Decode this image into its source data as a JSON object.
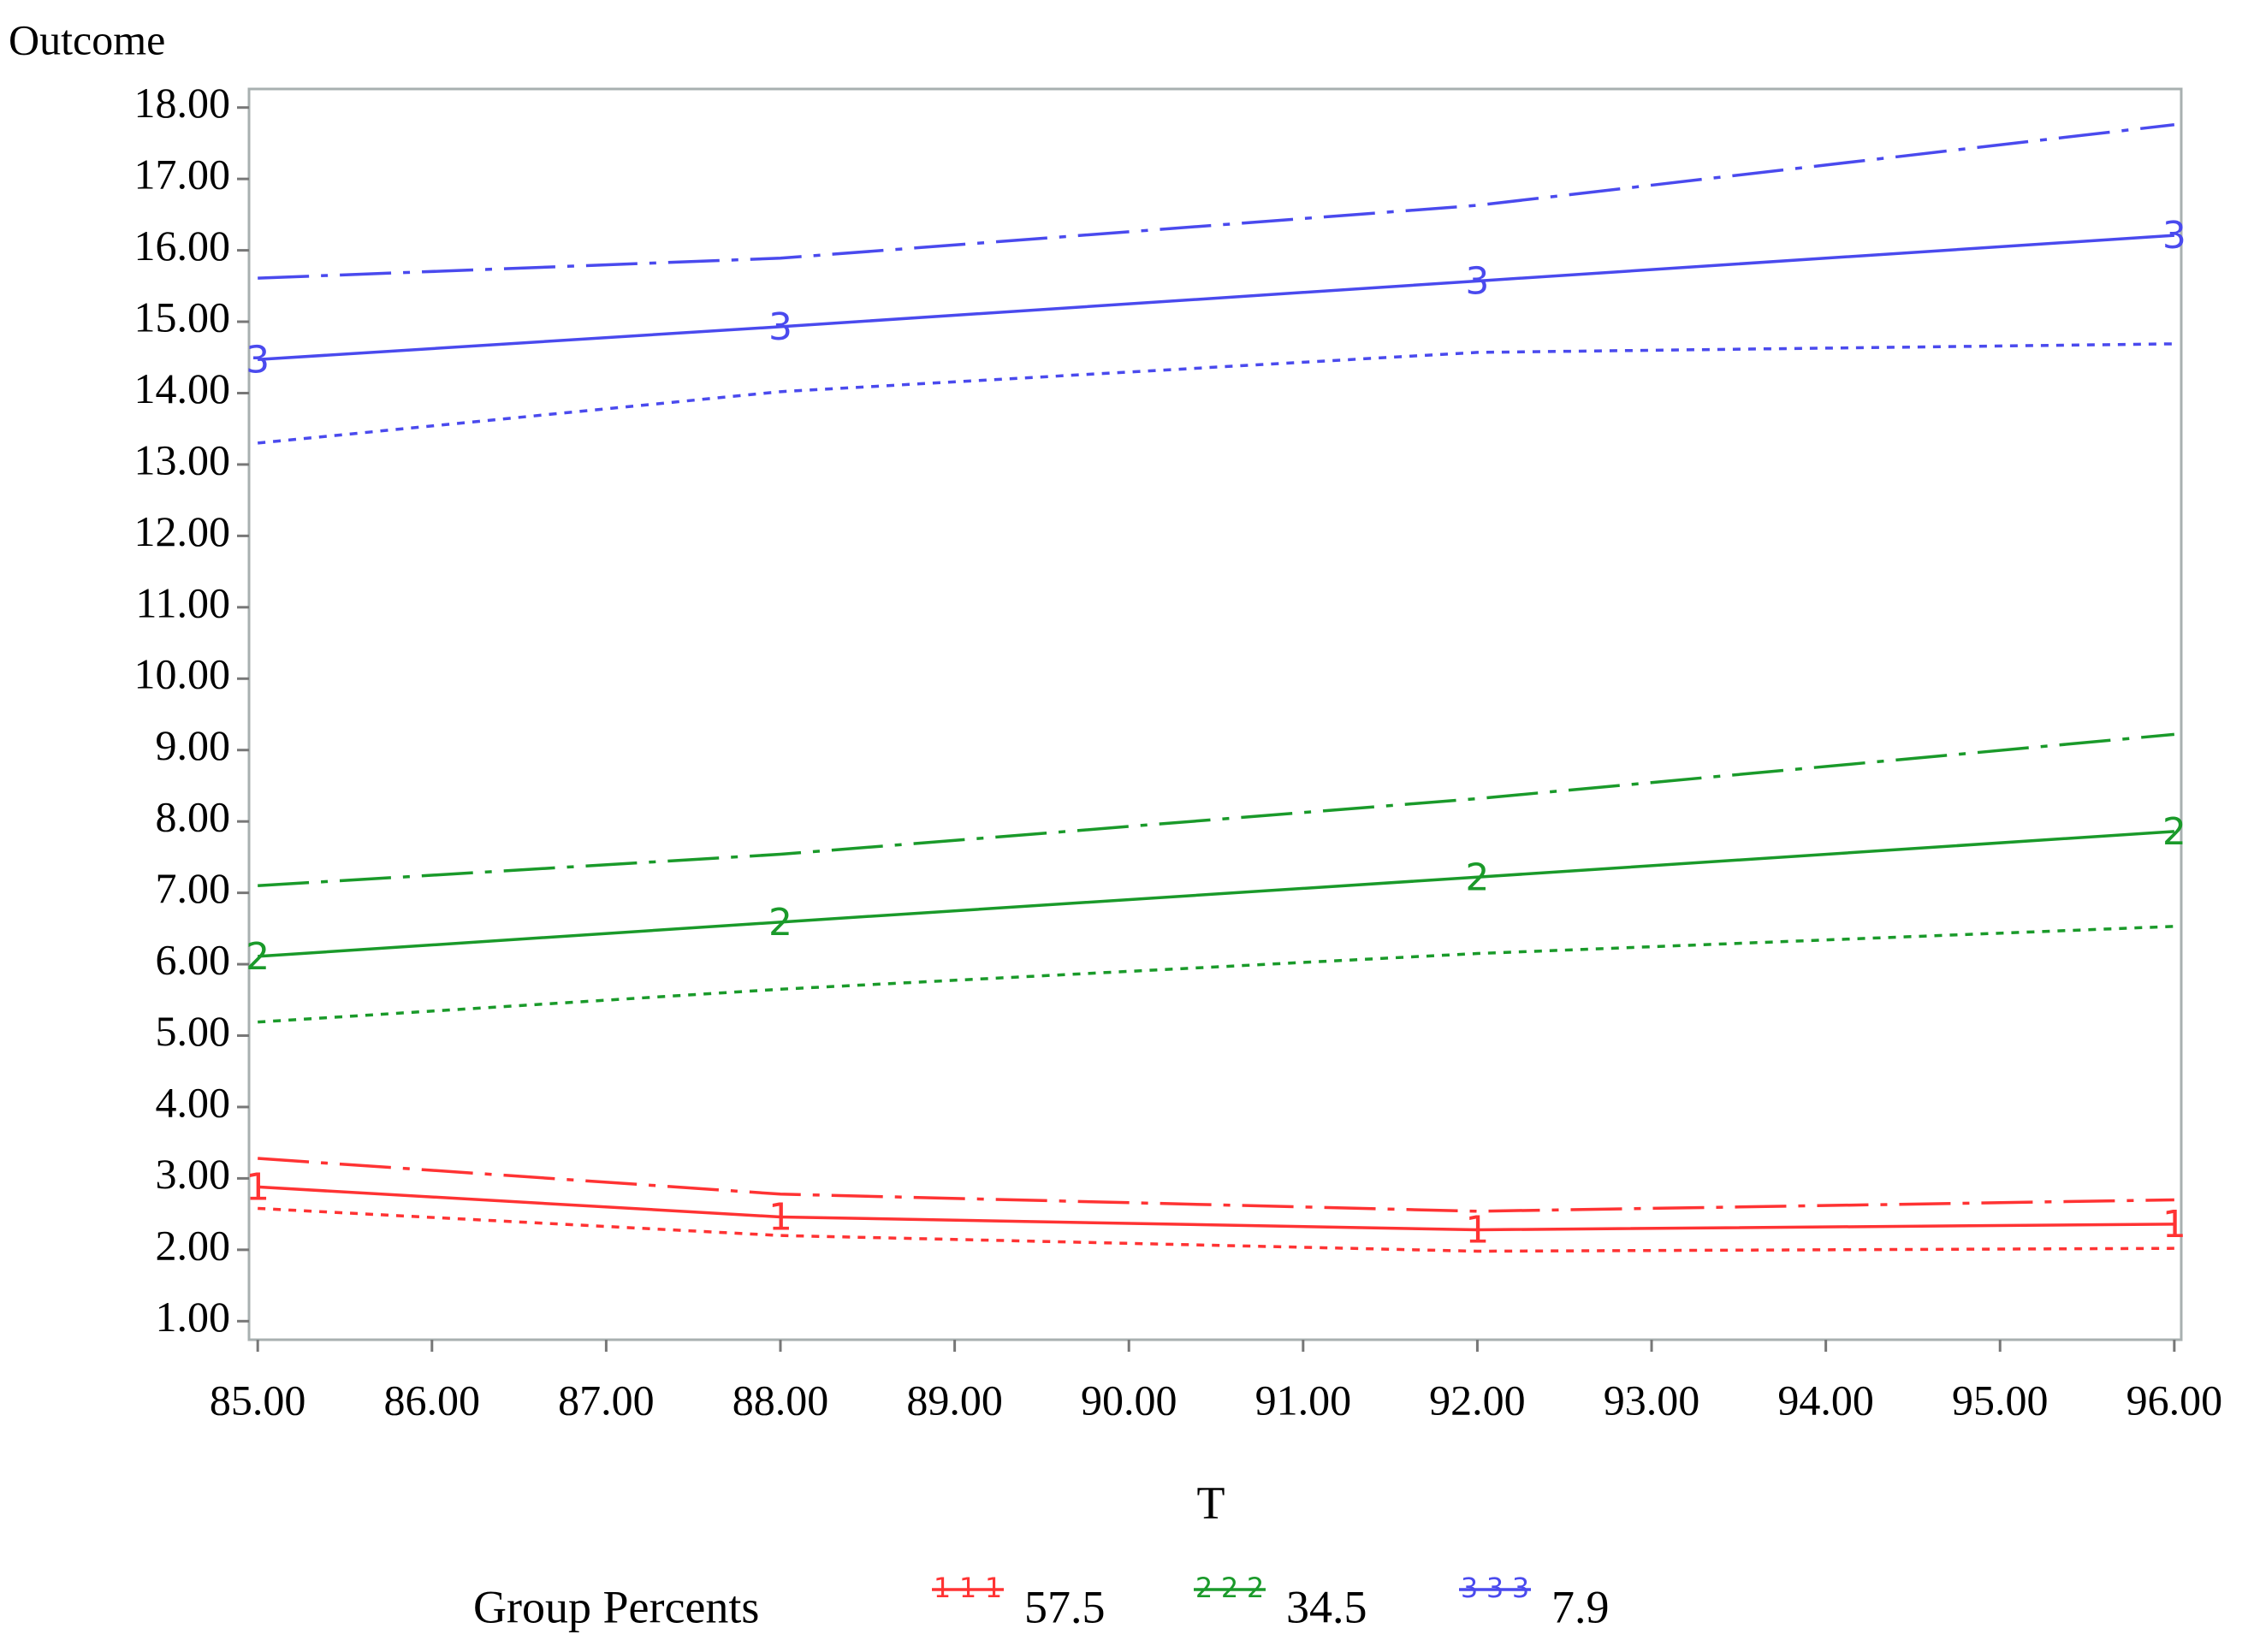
{
  "chart_data": {
    "type": "line",
    "y_label": "Outcome",
    "x_label": "T",
    "legend_title": "Group Percents",
    "x": [
      85,
      88,
      92,
      96
    ],
    "xlim": [
      84.95,
      96.04
    ],
    "ylim": [
      0.74,
      18.26
    ],
    "xticks": [
      {
        "value": 85,
        "label": "85.00"
      },
      {
        "value": 86,
        "label": "86.00"
      },
      {
        "value": 87,
        "label": "87.00"
      },
      {
        "value": 88,
        "label": "88.00"
      },
      {
        "value": 89,
        "label": "89.00"
      },
      {
        "value": 90,
        "label": "90.00"
      },
      {
        "value": 91,
        "label": "91.00"
      },
      {
        "value": 92,
        "label": "92.00"
      },
      {
        "value": 93,
        "label": "93.00"
      },
      {
        "value": 94,
        "label": "94.00"
      },
      {
        "value": 95,
        "label": "95.00"
      },
      {
        "value": 96,
        "label": "96.00"
      }
    ],
    "yticks": [
      {
        "value": 1,
        "label": "1.00"
      },
      {
        "value": 2,
        "label": "2.00"
      },
      {
        "value": 3,
        "label": "3.00"
      },
      {
        "value": 4,
        "label": "4.00"
      },
      {
        "value": 5,
        "label": "5.00"
      },
      {
        "value": 6,
        "label": "6.00"
      },
      {
        "value": 7,
        "label": "7.00"
      },
      {
        "value": 8,
        "label": "8.00"
      },
      {
        "value": 9,
        "label": "9.00"
      },
      {
        "value": 10,
        "label": "10.00"
      },
      {
        "value": 11,
        "label": "11.00"
      },
      {
        "value": 12,
        "label": "12.00"
      },
      {
        "value": 13,
        "label": "13.00"
      },
      {
        "value": 14,
        "label": "14.00"
      },
      {
        "value": 15,
        "label": "15.00"
      },
      {
        "value": 16,
        "label": "16.00"
      },
      {
        "value": 17,
        "label": "17.00"
      },
      {
        "value": 18,
        "label": "18.00"
      }
    ],
    "series": [
      {
        "name": "57.5",
        "marker": "1",
        "color": "#ff3333",
        "values": [
          2.88,
          2.46,
          2.28,
          2.36
        ],
        "lower": [
          2.58,
          2.2,
          1.98,
          2.02
        ],
        "upper": [
          3.28,
          2.78,
          2.54,
          2.7
        ]
      },
      {
        "name": "34.5",
        "marker": "2",
        "color": "#1a9a2a",
        "values": [
          6.11,
          6.59,
          7.22,
          7.86
        ],
        "lower": [
          5.19,
          5.65,
          6.15,
          6.53
        ],
        "upper": [
          7.1,
          7.54,
          8.32,
          9.22
        ]
      },
      {
        "name": "7.9",
        "marker": "3",
        "color": "#4a4aee",
        "values": [
          14.47,
          14.93,
          15.57,
          16.21
        ],
        "lower": [
          13.3,
          14.02,
          14.57,
          14.69
        ],
        "upper": [
          15.61,
          15.89,
          16.63,
          17.76
        ]
      }
    ]
  }
}
